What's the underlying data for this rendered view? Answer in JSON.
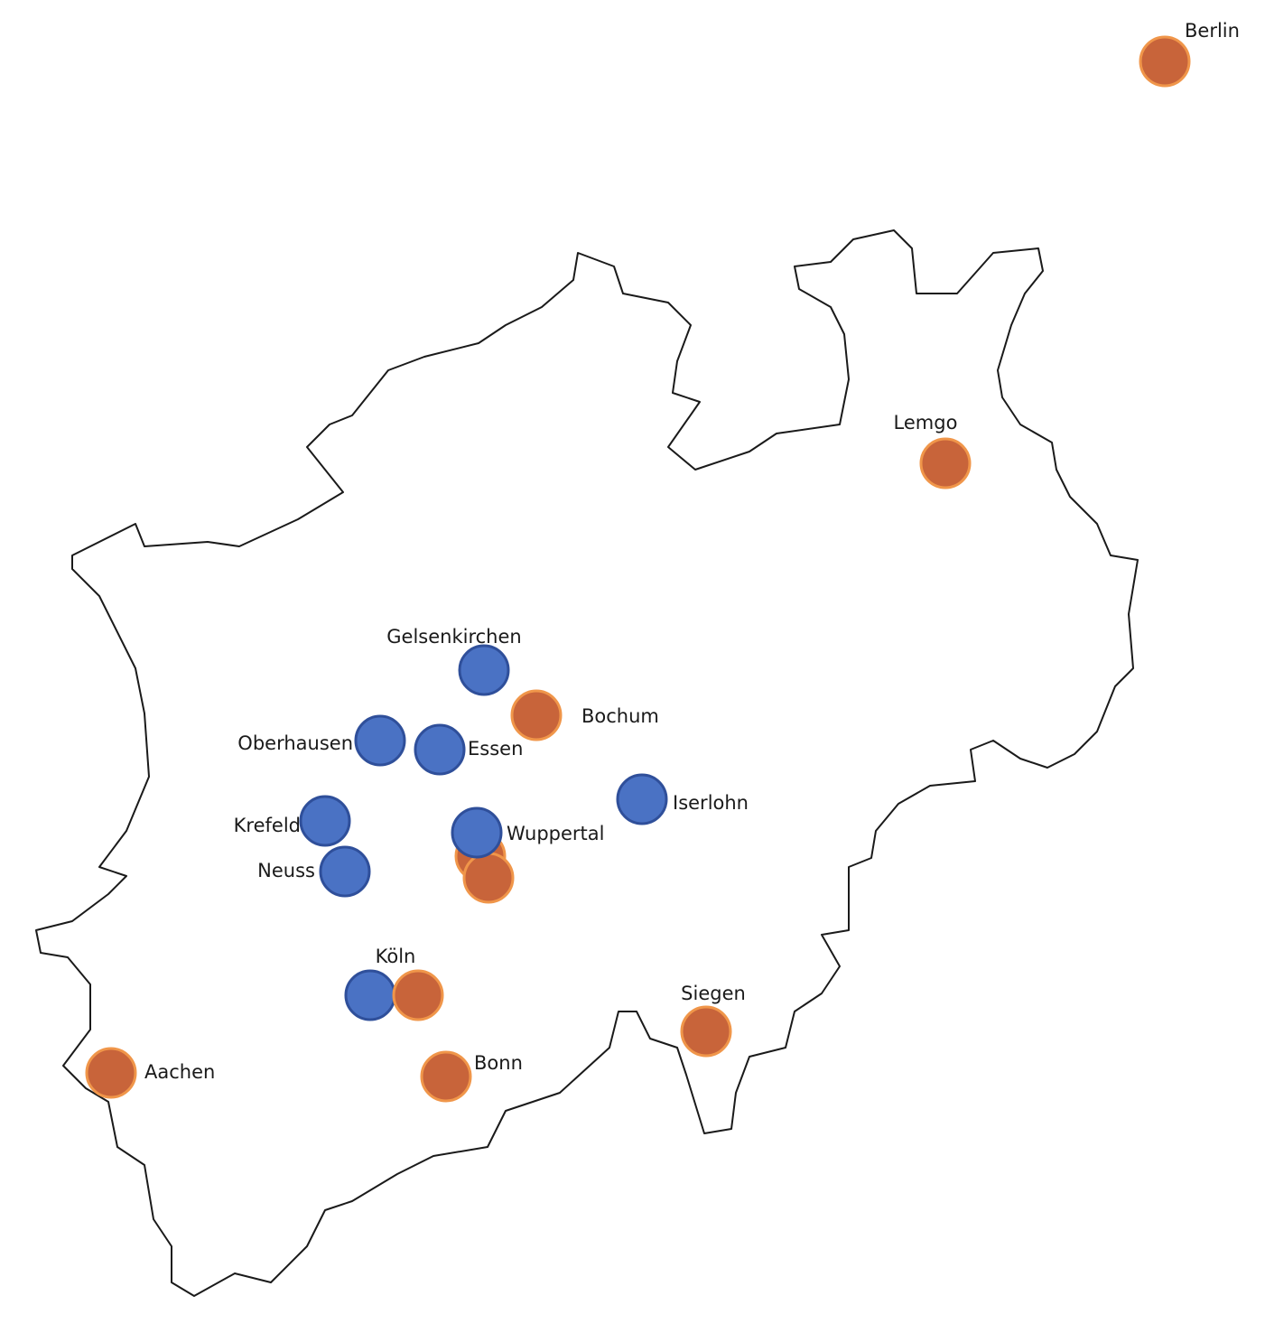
{
  "map": {
    "outline_color": "#1a1a1a",
    "cities": [
      {
        "label": "Berlin",
        "markers": [
          "#c8643a"
        ]
      },
      {
        "label": "Lemgo",
        "markers": [
          "#c8643a"
        ]
      },
      {
        "label": "Gelsenkirchen",
        "markers": [
          "#4a72c4"
        ]
      },
      {
        "label": "Bochum",
        "markers": [
          "#c8643a"
        ]
      },
      {
        "label": "Oberhausen",
        "markers": [
          "#4a72c4"
        ]
      },
      {
        "label": "Essen",
        "markers": [
          "#4a72c4"
        ]
      },
      {
        "label": "Iserlohn",
        "markers": [
          "#4a72c4"
        ]
      },
      {
        "label": "Krefeld",
        "markers": [
          "#4a72c4"
        ]
      },
      {
        "label": "Wuppertal",
        "markers": [
          "#4a72c4"
        ]
      },
      {
        "label": "Neuss",
        "markers": [
          "#4a72c4"
        ]
      },
      {
        "label": "Köln",
        "markers": [
          "#4a72c4",
          "#c8643a"
        ]
      },
      {
        "label": "Siegen",
        "markers": [
          "#c8643a"
        ]
      },
      {
        "label": "Aachen",
        "markers": [
          "#c8643a"
        ]
      },
      {
        "label": "Bonn",
        "markers": [
          "#c8643a"
        ]
      }
    ]
  }
}
